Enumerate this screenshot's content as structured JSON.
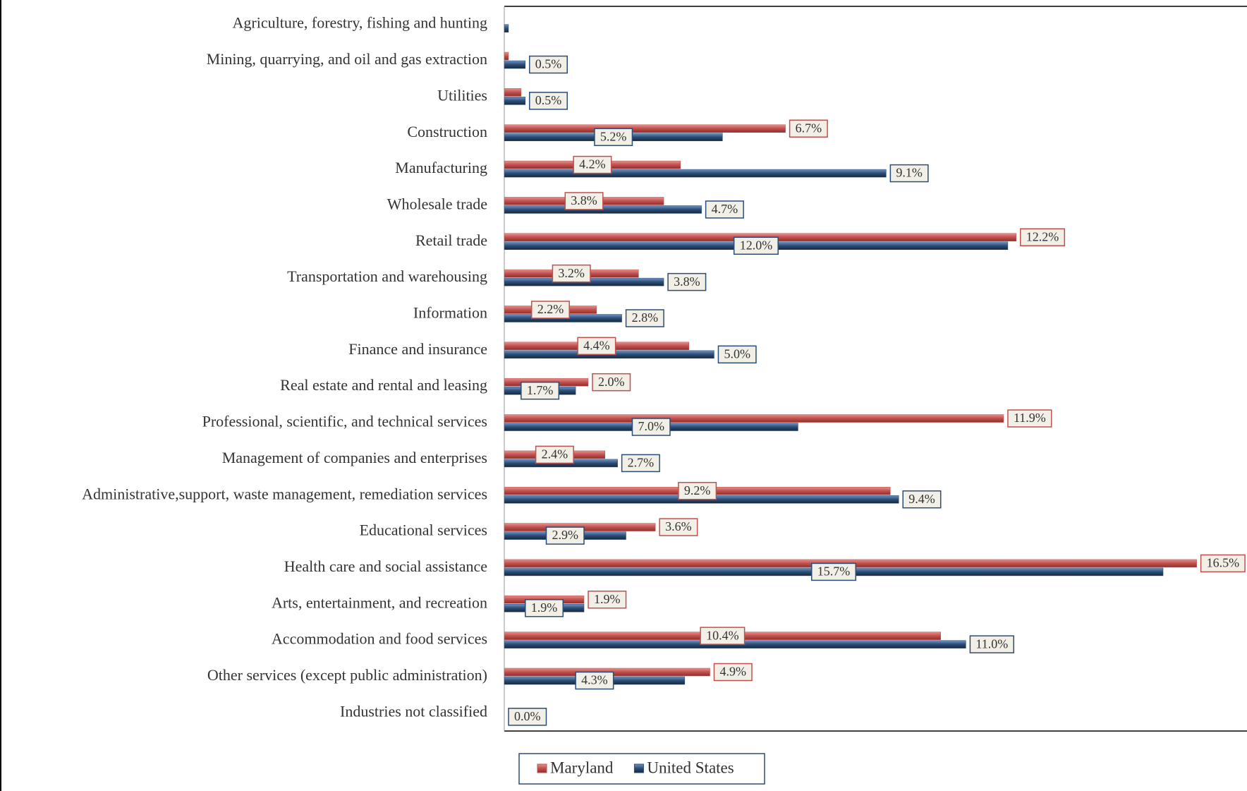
{
  "chart_data": {
    "type": "bar",
    "orientation": "horizontal",
    "categories": [
      "Agriculture, forestry, fishing and hunting",
      "Mining, quarrying, and oil and gas extraction",
      "Utilities",
      "Construction",
      "Manufacturing",
      "Wholesale trade",
      "Retail trade",
      "Transportation and warehousing",
      "Information",
      "Finance and insurance",
      "Real estate and rental and leasing",
      "Professional, scientific, and technical services",
      "Management of companies and enterprises",
      "Administrative,support, waste management, remediation services",
      "Educational services",
      "Health care and social assistance",
      "Arts, entertainment, and recreation",
      "Accommodation and food services",
      "Other services (except public administration)",
      "Industries not classified"
    ],
    "series": [
      {
        "name": "Maryland",
        "color": "#c0504d",
        "values": [
          0.0,
          0.1,
          0.4,
          6.7,
          4.2,
          3.8,
          12.2,
          3.2,
          2.2,
          4.4,
          2.0,
          11.9,
          2.4,
          9.2,
          3.6,
          16.5,
          1.9,
          10.4,
          4.9,
          0.0
        ],
        "value_labels": [
          null,
          null,
          null,
          "6.7%",
          "4.2%",
          "3.8%",
          "12.2%",
          "3.2%",
          "2.2%",
          "4.4%",
          "2.0%",
          "11.9%",
          "2.4%",
          "9.2%",
          "3.6%",
          "16.5%",
          "1.9%",
          "10.4%",
          "4.9%",
          null
        ]
      },
      {
        "name": "United States",
        "color": "#2c4d75",
        "values": [
          0.1,
          0.5,
          0.5,
          5.2,
          9.1,
          4.7,
          12.0,
          3.8,
          2.8,
          5.0,
          1.7,
          7.0,
          2.7,
          9.4,
          2.9,
          15.7,
          1.9,
          11.0,
          4.3,
          0.0
        ],
        "value_labels": [
          null,
          "0.5%",
          "0.5%",
          "5.2%",
          "9.1%",
          "4.7%",
          "12.0%",
          "3.8%",
          "2.8%",
          "5.0%",
          "1.7%",
          "7.0%",
          "2.7%",
          "9.4%",
          "2.9%",
          "15.7%",
          "1.9%",
          "11.0%",
          "4.3%",
          "0.0%"
        ]
      }
    ],
    "xlim": [
      0,
      17.7
    ],
    "legend": "bottom"
  }
}
